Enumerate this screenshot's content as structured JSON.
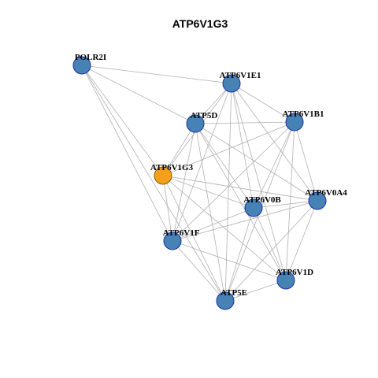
{
  "title": "ATP6V1G3",
  "nodes": [
    {
      "label": "POLR2I"
    },
    {
      "label": "ATP6V1E1"
    },
    {
      "label": "ATP5D"
    },
    {
      "label": "ATP6V1B1"
    },
    {
      "label": "ATP6V1G3"
    },
    {
      "label": "ATP6V0A4"
    },
    {
      "label": "ATP6V0B"
    },
    {
      "label": "ATP6V1F"
    },
    {
      "label": "ATP6V1D"
    },
    {
      "label": "ATP5E"
    }
  ]
}
